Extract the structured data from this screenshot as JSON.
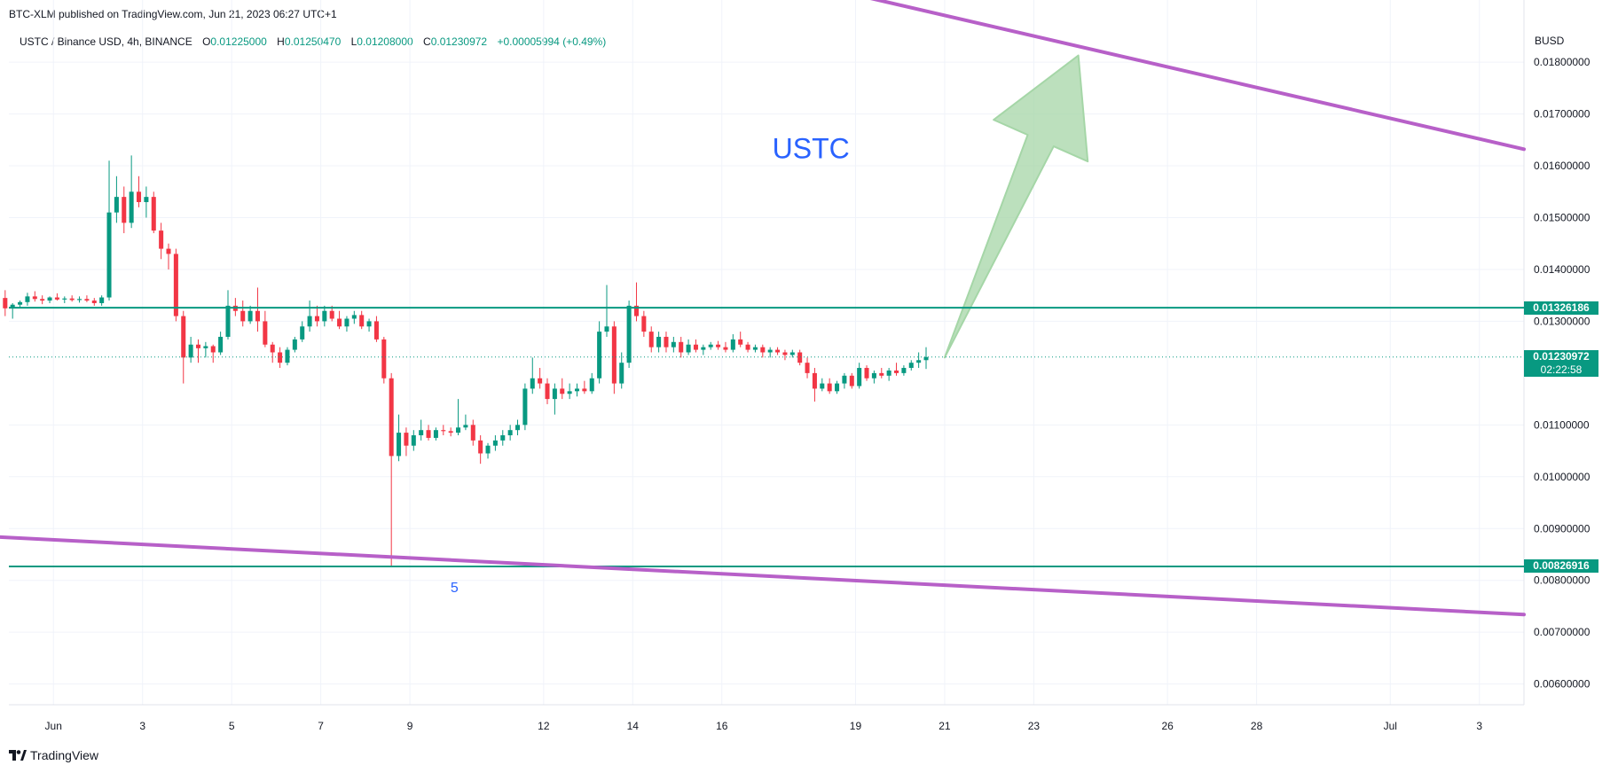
{
  "header": {
    "publish_line": "BTC-XLM published on TradingView.com, Jun 21, 2023 06:27 UTC+1",
    "symbol": "USTC / Binance USD, 4h, BINANCE",
    "open_label": "O",
    "open": "0.01225000",
    "high_label": "H",
    "high": "0.01250470",
    "low_label": "L",
    "low": "0.01208000",
    "close_label": "C",
    "close": "0.01230972",
    "change": "+0.00005994 (+0.49%)",
    "currency": "BUSD"
  },
  "footer": {
    "brand": "TradingView"
  },
  "price_tags": {
    "resistance": "0.01326186",
    "last": "0.01230972",
    "countdown": "02:22:58",
    "support": "0.00826916"
  },
  "colors": {
    "up": "#089981",
    "down": "#f23645",
    "trendline": "#b760c8",
    "hline": "#089981",
    "arrow_fill": "#a5d6a7",
    "annotation": "#2962ff",
    "grid": "#f0f3fa"
  },
  "chart_data": {
    "type": "candlestick",
    "title": "USTC",
    "timeframe": "4h",
    "ylim": [
      0.0056,
      0.0192
    ],
    "xlim": [
      "2023-05-31",
      "2023-07-04"
    ],
    "y_ticks": [
      "0.01800000",
      "0.01700000",
      "0.01600000",
      "0.01500000",
      "0.01400000",
      "0.01300000",
      "0.01100000",
      "0.01000000",
      "0.00900000",
      "0.00800000",
      "0.00700000",
      "0.00600000"
    ],
    "x_ticks": [
      {
        "date": "2023-06-01",
        "label": "Jun"
      },
      {
        "date": "2023-06-03",
        "label": "3"
      },
      {
        "date": "2023-06-05",
        "label": "5"
      },
      {
        "date": "2023-06-07",
        "label": "7"
      },
      {
        "date": "2023-06-09",
        "label": "9"
      },
      {
        "date": "2023-06-12",
        "label": "12"
      },
      {
        "date": "2023-06-14",
        "label": "14"
      },
      {
        "date": "2023-06-16",
        "label": "16"
      },
      {
        "date": "2023-06-19",
        "label": "19"
      },
      {
        "date": "2023-06-21",
        "label": "21"
      },
      {
        "date": "2023-06-23",
        "label": "23"
      },
      {
        "date": "2023-06-26",
        "label": "26"
      },
      {
        "date": "2023-06-28",
        "label": "28"
      },
      {
        "date": "2023-07-01",
        "label": "Jul"
      },
      {
        "date": "2023-07-03",
        "label": "3"
      }
    ],
    "horizontal_lines": [
      0.01326186,
      0.00826916
    ],
    "last_price": 0.01230972,
    "trendlines": [
      {
        "from": {
          "x": "2023-05-30",
          "y": 0.00887
        },
        "to": {
          "x": "2023-07-04",
          "y": 0.00734
        }
      },
      {
        "from": {
          "x": "2023-06-19",
          "y": 0.0193
        },
        "to": {
          "x": "2023-07-04",
          "y": 0.01632
        }
      }
    ],
    "annotations": [
      {
        "text": "USTC",
        "x": "2023-06-18",
        "y": 0.01615
      },
      {
        "text": "5",
        "x": "2023-06-10",
        "y": 0.00777
      }
    ],
    "arrow": {
      "from": {
        "x": "2023-06-21",
        "y": 0.0123
      },
      "to": {
        "x": "2023-06-24",
        "y": 0.01813
      }
    },
    "candles_start": "2023-05-30T08:00",
    "candles": [
      [
        0.0135,
        0.01358,
        0.01335,
        0.01345
      ],
      [
        0.01345,
        0.0135,
        0.0133,
        0.0134
      ],
      [
        0.0134,
        0.0135,
        0.01325,
        0.01345
      ],
      [
        0.01345,
        0.0136,
        0.0131,
        0.01325
      ],
      [
        0.01325,
        0.01335,
        0.01305,
        0.01332
      ],
      [
        0.01332,
        0.0134,
        0.01325,
        0.01337
      ],
      [
        0.01337,
        0.01355,
        0.0133,
        0.01348
      ],
      [
        0.01348,
        0.01358,
        0.01338,
        0.01343
      ],
      [
        0.01343,
        0.0135,
        0.01333,
        0.0134
      ],
      [
        0.0134,
        0.01348,
        0.01335,
        0.01346
      ],
      [
        0.01346,
        0.01354,
        0.0134,
        0.01342
      ],
      [
        0.01342,
        0.01348,
        0.01335,
        0.01344
      ],
      [
        0.01344,
        0.0135,
        0.01338,
        0.01341
      ],
      [
        0.01341,
        0.01348,
        0.01336,
        0.01343
      ],
      [
        0.01343,
        0.0135,
        0.01337,
        0.0134
      ],
      [
        0.0134,
        0.01345,
        0.0133,
        0.01335
      ],
      [
        0.01335,
        0.0135,
        0.0133,
        0.01346
      ],
      [
        0.01346,
        0.0161,
        0.0134,
        0.0151
      ],
      [
        0.0151,
        0.0158,
        0.0149,
        0.0154
      ],
      [
        0.0154,
        0.0156,
        0.0147,
        0.0149
      ],
      [
        0.0149,
        0.0162,
        0.0148,
        0.0155
      ],
      [
        0.0155,
        0.0158,
        0.0152,
        0.0153
      ],
      [
        0.0153,
        0.0156,
        0.015,
        0.0154
      ],
      [
        0.0154,
        0.0155,
        0.0147,
        0.01475
      ],
      [
        0.01475,
        0.0149,
        0.0142,
        0.0144
      ],
      [
        0.0144,
        0.0145,
        0.014,
        0.0143
      ],
      [
        0.0143,
        0.0144,
        0.013,
        0.0131
      ],
      [
        0.0131,
        0.0132,
        0.0118,
        0.0123
      ],
      [
        0.0123,
        0.0127,
        0.0122,
        0.01255
      ],
      [
        0.01255,
        0.01265,
        0.0122,
        0.01248
      ],
      [
        0.01248,
        0.0126,
        0.0123,
        0.01252
      ],
      [
        0.01252,
        0.01255,
        0.0122,
        0.0124
      ],
      [
        0.0124,
        0.0128,
        0.01235,
        0.0127
      ],
      [
        0.0127,
        0.0136,
        0.01265,
        0.0133
      ],
      [
        0.0133,
        0.01345,
        0.0131,
        0.0132
      ],
      [
        0.0132,
        0.0134,
        0.0129,
        0.013
      ],
      [
        0.013,
        0.0133,
        0.01295,
        0.0132
      ],
      [
        0.0132,
        0.01365,
        0.0128,
        0.013
      ],
      [
        0.013,
        0.0132,
        0.0125,
        0.01255
      ],
      [
        0.01255,
        0.0126,
        0.0122,
        0.0124
      ],
      [
        0.0124,
        0.0125,
        0.0121,
        0.0122
      ],
      [
        0.0122,
        0.0125,
        0.01215,
        0.01245
      ],
      [
        0.01245,
        0.0127,
        0.0124,
        0.01265
      ],
      [
        0.01265,
        0.013,
        0.0126,
        0.0129
      ],
      [
        0.0129,
        0.0134,
        0.0128,
        0.0131
      ],
      [
        0.0131,
        0.0133,
        0.0129,
        0.013
      ],
      [
        0.013,
        0.0133,
        0.0129,
        0.0132
      ],
      [
        0.0132,
        0.0133,
        0.013,
        0.01305
      ],
      [
        0.01305,
        0.0132,
        0.01285,
        0.0129
      ],
      [
        0.0129,
        0.0131,
        0.0128,
        0.01305
      ],
      [
        0.01305,
        0.0132,
        0.01295,
        0.01312
      ],
      [
        0.01312,
        0.0132,
        0.01285,
        0.0129
      ],
      [
        0.0129,
        0.01305,
        0.0128,
        0.013
      ],
      [
        0.013,
        0.0131,
        0.0126,
        0.01265
      ],
      [
        0.01265,
        0.0127,
        0.0118,
        0.0119
      ],
      [
        0.0119,
        0.012,
        0.00827,
        0.0104
      ],
      [
        0.0104,
        0.0112,
        0.0103,
        0.01085
      ],
      [
        0.01085,
        0.01095,
        0.0104,
        0.0106
      ],
      [
        0.0106,
        0.0109,
        0.0105,
        0.0108
      ],
      [
        0.0108,
        0.0111,
        0.0107,
        0.0109
      ],
      [
        0.0109,
        0.011,
        0.0107,
        0.01075
      ],
      [
        0.01075,
        0.01095,
        0.0107,
        0.0109
      ],
      [
        0.0109,
        0.011,
        0.0108,
        0.01088
      ],
      [
        0.01088,
        0.01095,
        0.01078,
        0.01085
      ],
      [
        0.01085,
        0.0115,
        0.0108,
        0.01095
      ],
      [
        0.01095,
        0.0112,
        0.0109,
        0.011
      ],
      [
        0.011,
        0.0111,
        0.0106,
        0.0107
      ],
      [
        0.0107,
        0.0108,
        0.01025,
        0.01045
      ],
      [
        0.01045,
        0.01065,
        0.01035,
        0.0106
      ],
      [
        0.0106,
        0.0108,
        0.0105,
        0.0107
      ],
      [
        0.0107,
        0.0109,
        0.0106,
        0.0108
      ],
      [
        0.0108,
        0.011,
        0.0107,
        0.0109
      ],
      [
        0.0109,
        0.0111,
        0.0108,
        0.011
      ],
      [
        0.011,
        0.0118,
        0.0109,
        0.0117
      ],
      [
        0.0117,
        0.0123,
        0.0116,
        0.0119
      ],
      [
        0.0119,
        0.0121,
        0.0117,
        0.0118
      ],
      [
        0.0118,
        0.0119,
        0.0114,
        0.0115
      ],
      [
        0.0115,
        0.0118,
        0.0112,
        0.0117
      ],
      [
        0.0117,
        0.0119,
        0.0115,
        0.0116
      ],
      [
        0.0116,
        0.0118,
        0.0115,
        0.01165
      ],
      [
        0.01165,
        0.0118,
        0.01155,
        0.0117
      ],
      [
        0.0117,
        0.01185,
        0.0116,
        0.01165
      ],
      [
        0.01165,
        0.012,
        0.0116,
        0.0119
      ],
      [
        0.0119,
        0.013,
        0.0118,
        0.0128
      ],
      [
        0.0128,
        0.0137,
        0.0127,
        0.0129
      ],
      [
        0.0129,
        0.013,
        0.0116,
        0.0118
      ],
      [
        0.0118,
        0.0124,
        0.0117,
        0.0122
      ],
      [
        0.0122,
        0.0134,
        0.0121,
        0.0133
      ],
      [
        0.0133,
        0.01375,
        0.013,
        0.0131
      ],
      [
        0.0131,
        0.0132,
        0.0127,
        0.0128
      ],
      [
        0.0128,
        0.0129,
        0.0124,
        0.0125
      ],
      [
        0.0125,
        0.0128,
        0.0124,
        0.0127
      ],
      [
        0.0127,
        0.0128,
        0.0124,
        0.0125
      ],
      [
        0.0125,
        0.0127,
        0.0124,
        0.0126
      ],
      [
        0.0126,
        0.0127,
        0.0123,
        0.0124
      ],
      [
        0.0124,
        0.01265,
        0.01235,
        0.01255
      ],
      [
        0.01255,
        0.01265,
        0.0124,
        0.01245
      ],
      [
        0.01245,
        0.01255,
        0.01235,
        0.0125
      ],
      [
        0.0125,
        0.0126,
        0.01245,
        0.01255
      ],
      [
        0.01255,
        0.01262,
        0.01245,
        0.0125
      ],
      [
        0.0125,
        0.0126,
        0.0124,
        0.01245
      ],
      [
        0.01245,
        0.01275,
        0.0124,
        0.01265
      ],
      [
        0.01265,
        0.0128,
        0.0125,
        0.01255
      ],
      [
        0.01255,
        0.0126,
        0.0124,
        0.01245
      ],
      [
        0.01245,
        0.01255,
        0.0124,
        0.0125
      ],
      [
        0.0125,
        0.01255,
        0.0123,
        0.0124
      ],
      [
        0.0124,
        0.0125,
        0.0123,
        0.01245
      ],
      [
        0.01245,
        0.0125,
        0.01235,
        0.0124
      ],
      [
        0.0124,
        0.01245,
        0.01225,
        0.01235
      ],
      [
        0.01235,
        0.01245,
        0.0123,
        0.0124
      ],
      [
        0.0124,
        0.01245,
        0.01215,
        0.0122
      ],
      [
        0.0122,
        0.0123,
        0.0119,
        0.012
      ],
      [
        0.012,
        0.0121,
        0.01145,
        0.0117
      ],
      [
        0.0117,
        0.0119,
        0.01165,
        0.0118
      ],
      [
        0.0118,
        0.0119,
        0.0116,
        0.01165
      ],
      [
        0.01165,
        0.01185,
        0.0116,
        0.0118
      ],
      [
        0.0118,
        0.012,
        0.0117,
        0.01195
      ],
      [
        0.01195,
        0.012,
        0.0117,
        0.01175
      ],
      [
        0.01175,
        0.0122,
        0.0117,
        0.0121
      ],
      [
        0.0121,
        0.01215,
        0.01185,
        0.0119
      ],
      [
        0.0119,
        0.01205,
        0.0118,
        0.012
      ],
      [
        0.012,
        0.0121,
        0.0119,
        0.01195
      ],
      [
        0.01195,
        0.0121,
        0.01185,
        0.01205
      ],
      [
        0.01205,
        0.0122,
        0.01195,
        0.012
      ],
      [
        0.012,
        0.01215,
        0.01195,
        0.0121
      ],
      [
        0.0121,
        0.01225,
        0.01205,
        0.0122
      ],
      [
        0.0122,
        0.0124,
        0.0121,
        0.01225
      ],
      [
        0.01225,
        0.0125,
        0.01208,
        0.01231
      ]
    ]
  }
}
